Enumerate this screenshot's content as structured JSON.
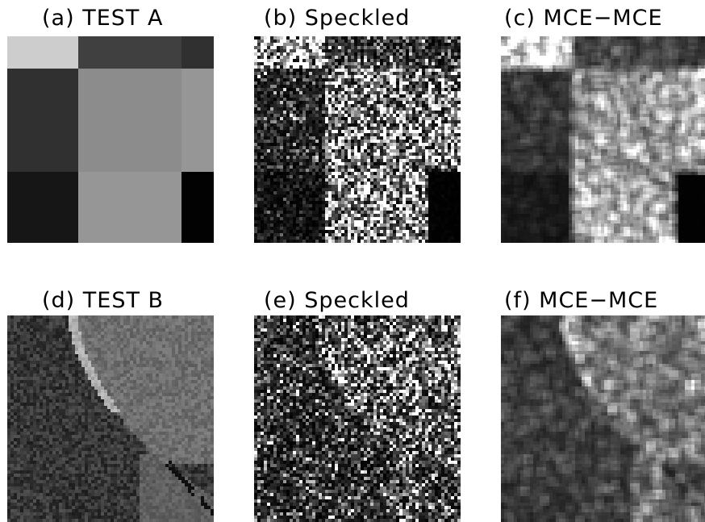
{
  "panels": [
    {
      "id": "a",
      "title": "(a) TEST A",
      "kind": "test-a"
    },
    {
      "id": "b",
      "title": "(b) Speckled",
      "kind": "test-a-speckled"
    },
    {
      "id": "c",
      "title": "(c) MCE−MCE",
      "kind": "test-a-filtered"
    },
    {
      "id": "d",
      "title": "(d) TEST B",
      "kind": "test-b"
    },
    {
      "id": "e",
      "title": "(e) Speckled",
      "kind": "test-b-speckled"
    },
    {
      "id": "f",
      "title": "(f) MCE−MCE",
      "kind": "test-b-filtered"
    }
  ]
}
